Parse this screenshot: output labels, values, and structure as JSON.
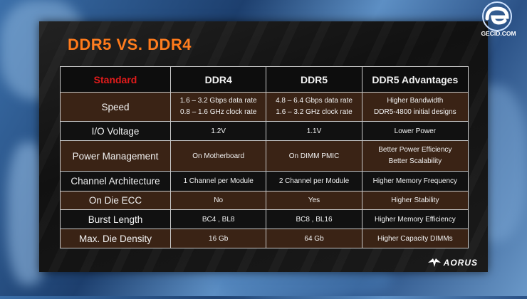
{
  "slide": {
    "title": "DDR5 VS. DDR4",
    "table": {
      "headers": [
        "Standard",
        "DDR4",
        "DDR5",
        "DDR5 Advantages"
      ],
      "rows": [
        {
          "label": "Speed",
          "ddr4": [
            "1.6 – 3.2 Gbps data rate",
            "0.8 – 1.6 GHz clock rate"
          ],
          "ddr5": [
            "4.8 – 6.4 Gbps data rate",
            "1.6 – 3.2 GHz clock rate"
          ],
          "adv": [
            "Higher Bandwidth",
            "DDR5-4800 initial designs"
          ]
        },
        {
          "label": "I/O Voltage",
          "ddr4": [
            "1.2V"
          ],
          "ddr5": [
            "1.1V"
          ],
          "adv": [
            "Lower Power"
          ]
        },
        {
          "label": "Power Management",
          "ddr4": [
            "On Motherboard"
          ],
          "ddr5": [
            "On DIMM PMIC"
          ],
          "adv": [
            "Better Power Efficiency",
            "Better Scalability"
          ]
        },
        {
          "label": "Channel Architecture",
          "ddr4": [
            "1 Channel per Module"
          ],
          "ddr5": [
            "2 Channel per Module"
          ],
          "adv": [
            "Higher Memory Frequency"
          ]
        },
        {
          "label": "On Die ECC",
          "ddr4": [
            "No"
          ],
          "ddr5": [
            "Yes"
          ],
          "adv": [
            "Higher Stability"
          ]
        },
        {
          "label": "Burst Length",
          "ddr4": [
            "BC4 , BL8"
          ],
          "ddr5": [
            "BC8 , BL16"
          ],
          "adv": [
            "Higher Memory Efficiency"
          ]
        },
        {
          "label": "Max. Die Density",
          "ddr4": [
            "16 Gb"
          ],
          "ddr5": [
            "64 Gb"
          ],
          "adv": [
            "Higher Capacity DIMMs"
          ]
        }
      ]
    },
    "brand": "AORUS"
  },
  "watermark": {
    "text": "GECID.COM",
    "icon": "gecid-logo"
  },
  "colors": {
    "title": "#ff7a1a",
    "standard_header": "#e21b1b",
    "row_band": "#3a2315",
    "row_dark": "#111111"
  }
}
